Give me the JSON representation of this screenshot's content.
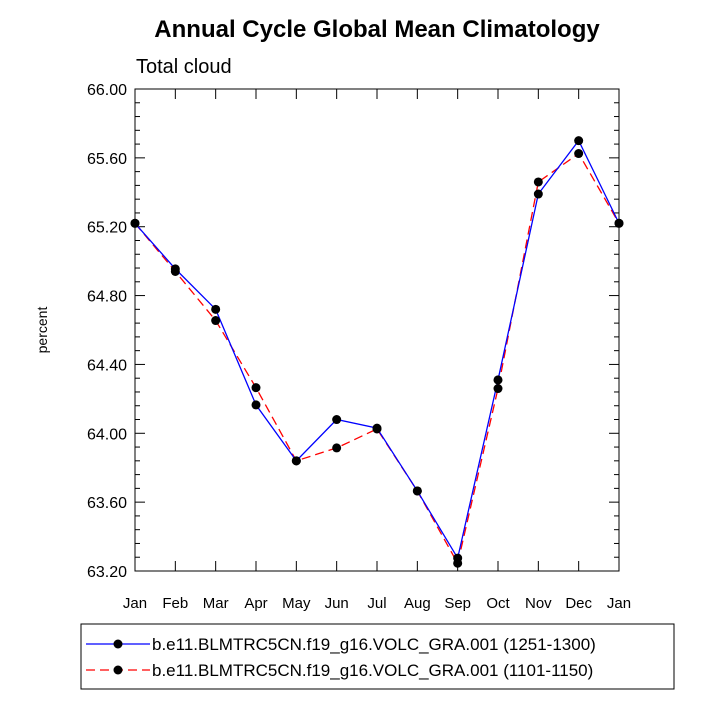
{
  "chart_data": {
    "type": "line",
    "title": "Annual Cycle Global Mean Climatology",
    "subtitle": "Total cloud",
    "ylabel": "percent",
    "xlabel": "",
    "categories": [
      "Jan",
      "Feb",
      "Mar",
      "Apr",
      "May",
      "Jun",
      "Jul",
      "Aug",
      "Sep",
      "Oct",
      "Nov",
      "Dec",
      "Jan"
    ],
    "ylim": [
      63.2,
      66.0
    ],
    "yticks": [
      63.2,
      63.6,
      64.0,
      64.4,
      64.8,
      65.2,
      65.6,
      66.0
    ],
    "ytick_labels": [
      "63.20",
      "63.60",
      "64.00",
      "64.40",
      "64.80",
      "65.20",
      "65.60",
      "66.00"
    ],
    "series": [
      {
        "name": "b.e11.BLMTRC5CN.f19_g16.VOLC_GRA.001 (1251-1300)",
        "color": "#0000ff",
        "dash": "solid",
        "values": [
          65.22,
          64.955,
          64.72,
          64.165,
          63.84,
          64.08,
          64.03,
          63.665,
          63.275,
          64.31,
          65.39,
          65.7,
          65.22
        ]
      },
      {
        "name": "b.e11.BLMTRC5CN.f19_g16.VOLC_GRA.001 (1101-1150)",
        "color": "#ff0000",
        "dash": "dashed",
        "values": [
          65.22,
          64.94,
          64.655,
          64.265,
          63.84,
          63.915,
          64.025,
          63.665,
          63.245,
          64.26,
          65.46,
          65.625,
          65.22
        ]
      }
    ],
    "legend_position": "bottom"
  }
}
